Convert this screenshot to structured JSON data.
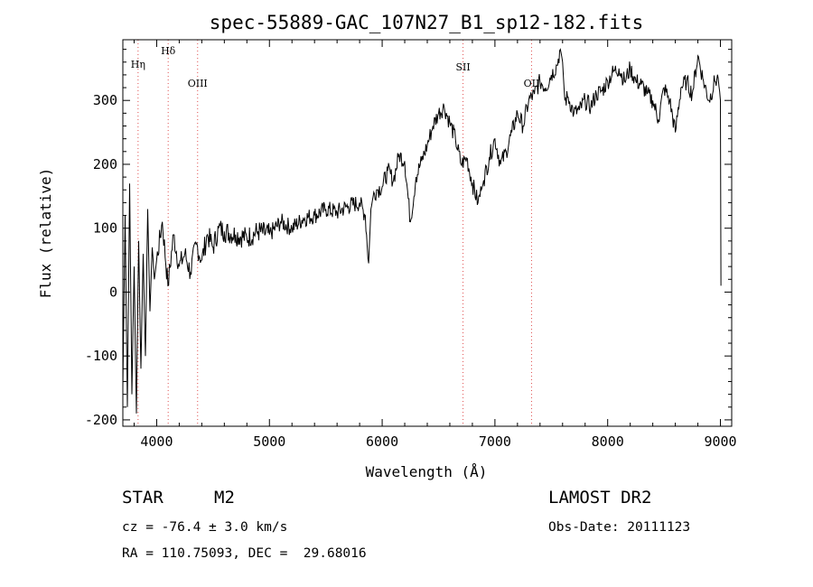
{
  "chart_data": {
    "type": "line",
    "title": "spec-55889-GAC_107N27_B1_sp12-182.fits",
    "xlabel": "Wavelength (Å)",
    "ylabel": "Flux (relative)",
    "xlim": [
      3700,
      9100
    ],
    "ylim": [
      -210,
      395
    ],
    "xticks": [
      4000,
      5000,
      6000,
      7000,
      8000,
      9000
    ],
    "yticks": [
      -200,
      -100,
      0,
      100,
      200,
      300
    ],
    "xtick_labels": [
      "4000",
      "5000",
      "6000",
      "7000",
      "8000",
      "9000"
    ],
    "ytick_labels": [
      "-200",
      "-100",
      "0",
      "100",
      "200",
      "300"
    ],
    "grid": false,
    "line_color": "#000000",
    "marker_color": "#e05050",
    "lines": [
      {
        "name": "Hη",
        "wavelength": 3835
      },
      {
        "name": "Hδ",
        "wavelength": 4102
      },
      {
        "name": "OIII",
        "wavelength": 4363
      },
      {
        "name": "SII",
        "wavelength": 6717
      },
      {
        "name": "OII",
        "wavelength": 7325
      }
    ],
    "series": [
      {
        "x": [
          3700,
          3720,
          3740,
          3760,
          3780,
          3800,
          3820,
          3840,
          3860,
          3880,
          3900,
          3920,
          3940,
          3960,
          3980,
          4000,
          4050,
          4100,
          4150,
          4200,
          4250,
          4300,
          4350,
          4400,
          4450,
          4500,
          4550,
          4600,
          4700,
          4800,
          4900,
          5000,
          5100,
          5200,
          5300,
          5400,
          5500,
          5600,
          5700,
          5800,
          5850,
          5880,
          5900,
          5920,
          5950,
          6000,
          6050,
          6100,
          6150,
          6200,
          6250,
          6300,
          6350,
          6400,
          6450,
          6500,
          6550,
          6600,
          6650,
          6700,
          6750,
          6800,
          6850,
          6880,
          6900,
          6950,
          7000,
          7050,
          7100,
          7150,
          7200,
          7250,
          7300,
          7350,
          7400,
          7450,
          7500,
          7550,
          7580,
          7600,
          7620,
          7650,
          7700,
          7750,
          7800,
          7850,
          7900,
          7950,
          8000,
          8050,
          8100,
          8150,
          8200,
          8250,
          8300,
          8350,
          8400,
          8450,
          8500,
          8550,
          8600,
          8650,
          8700,
          8750,
          8800,
          8850,
          8900,
          8950,
          8980,
          9000,
          9005
        ],
        "y": [
          -150,
          120,
          -180,
          170,
          -160,
          40,
          -190,
          80,
          -120,
          60,
          -100,
          130,
          -30,
          70,
          20,
          50,
          110,
          10,
          90,
          40,
          60,
          30,
          75,
          50,
          90,
          70,
          100,
          95,
          90,
          85,
          95,
          90,
          110,
          100,
          115,
          120,
          130,
          125,
          135,
          140,
          120,
          45,
          130,
          150,
          160,
          165,
          190,
          175,
          215,
          205,
          110,
          180,
          205,
          230,
          260,
          280,
          290,
          265,
          240,
          200,
          210,
          170,
          140,
          160,
          175,
          210,
          240,
          200,
          220,
          250,
          280,
          260,
          300,
          310,
          330,
          320,
          340,
          355,
          380,
          360,
          300,
          305,
          280,
          285,
          300,
          290,
          310,
          315,
          330,
          345,
          350,
          330,
          350,
          330,
          325,
          310,
          300,
          270,
          320,
          300,
          250,
          320,
          330,
          310,
          370,
          330,
          300,
          330,
          335,
          300,
          10
        ]
      }
    ]
  },
  "info": {
    "object_class": "STAR",
    "subclass": "M2",
    "survey": "LAMOST DR2",
    "cz": "cz = -76.4 ± 3.0 km/s",
    "obs_date": "Obs-Date: 20111123",
    "coords": "RA = 110.75093, DEC =  29.68016"
  }
}
